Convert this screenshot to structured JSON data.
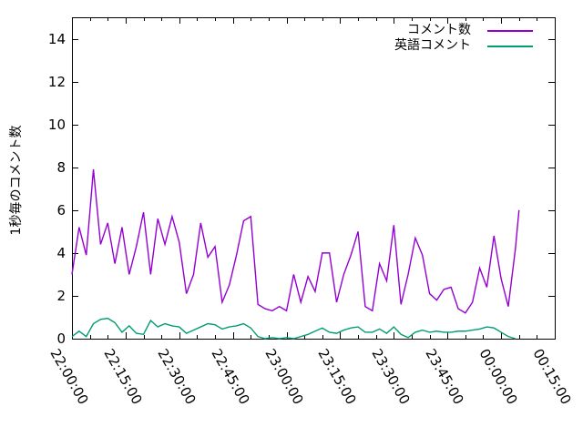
{
  "chart_data": {
    "type": "line",
    "title": "",
    "xlabel": "",
    "ylabel": "1秒毎のコメント数",
    "ylim": [
      0,
      15
    ],
    "x_range_minutes": [
      0,
      135
    ],
    "x_major_step_minutes": 15,
    "x_minor_step_minutes": 5,
    "grid": false,
    "legend_position": "top-right-inside",
    "axis_color": "#000000",
    "background_color": "#ffffff",
    "y_ticks": [
      {
        "value": 0,
        "label": "0"
      },
      {
        "value": 2,
        "label": "2"
      },
      {
        "value": 4,
        "label": "4"
      },
      {
        "value": 6,
        "label": "6"
      },
      {
        "value": 8,
        "label": "8"
      },
      {
        "value": 10,
        "label": "10"
      },
      {
        "value": 12,
        "label": "12"
      },
      {
        "value": 14,
        "label": "14"
      }
    ],
    "x_ticks": [
      {
        "minutes": 0,
        "label": "22:00:00"
      },
      {
        "minutes": 15,
        "label": "22:15:00"
      },
      {
        "minutes": 30,
        "label": "22:30:00"
      },
      {
        "minutes": 45,
        "label": "22:45:00"
      },
      {
        "minutes": 60,
        "label": "23:00:00"
      },
      {
        "minutes": 75,
        "label": "23:15:00"
      },
      {
        "minutes": 90,
        "label": "23:30:00"
      },
      {
        "minutes": 105,
        "label": "23:45:00"
      },
      {
        "minutes": 120,
        "label": "00:00:00"
      },
      {
        "minutes": 135,
        "label": "00:15:00"
      }
    ],
    "series": [
      {
        "name": "コメント数",
        "color": "#9400d3",
        "x_minutes": [
          0,
          2,
          4,
          6,
          8,
          10,
          12,
          14,
          16,
          18,
          20,
          22,
          24,
          26,
          28,
          30,
          32,
          34,
          36,
          38,
          40,
          42,
          44,
          46,
          48,
          50,
          52,
          54,
          56,
          58,
          60,
          62,
          64,
          66,
          68,
          70,
          72,
          74,
          76,
          78,
          80,
          82,
          84,
          86,
          88,
          90,
          92,
          94,
          96,
          98,
          100,
          102,
          104,
          106,
          108,
          110,
          112,
          114,
          116,
          118,
          120,
          122,
          124,
          125
        ],
        "values": [
          3.0,
          5.2,
          3.9,
          7.9,
          4.4,
          5.4,
          3.5,
          5.2,
          3.0,
          4.3,
          5.9,
          3.0,
          5.6,
          4.4,
          5.7,
          4.5,
          2.1,
          3.0,
          5.4,
          3.8,
          4.3,
          1.7,
          2.5,
          3.9,
          5.5,
          5.7,
          1.6,
          1.4,
          1.3,
          1.5,
          1.3,
          3.0,
          1.7,
          2.9,
          2.2,
          4.0,
          4.0,
          1.7,
          3.0,
          3.9,
          5.0,
          1.5,
          1.3,
          3.5,
          2.7,
          5.3,
          1.6,
          3.0,
          4.7,
          3.9,
          2.1,
          1.8,
          2.3,
          2.4,
          1.4,
          1.2,
          1.7,
          3.3,
          2.4,
          4.8,
          2.8,
          1.5,
          4.2,
          6.0
        ]
      },
      {
        "name": "英語コメント",
        "color": "#009e73",
        "x_minutes": [
          0,
          2,
          4,
          6,
          8,
          10,
          12,
          14,
          16,
          18,
          20,
          22,
          24,
          26,
          28,
          30,
          32,
          34,
          36,
          38,
          40,
          42,
          44,
          46,
          48,
          50,
          52,
          54,
          56,
          58,
          60,
          62,
          64,
          66,
          68,
          70,
          72,
          74,
          76,
          78,
          80,
          82,
          84,
          86,
          88,
          90,
          92,
          94,
          96,
          98,
          100,
          102,
          104,
          106,
          108,
          110,
          112,
          114,
          116,
          118,
          120,
          122,
          124
        ],
        "values": [
          0.1,
          0.35,
          0.1,
          0.7,
          0.9,
          0.95,
          0.75,
          0.3,
          0.6,
          0.25,
          0.2,
          0.85,
          0.55,
          0.7,
          0.6,
          0.55,
          0.25,
          0.4,
          0.55,
          0.7,
          0.65,
          0.45,
          0.55,
          0.6,
          0.7,
          0.5,
          0.1,
          0.0,
          0.05,
          0.0,
          0.05,
          0.0,
          0.1,
          0.2,
          0.35,
          0.5,
          0.3,
          0.25,
          0.4,
          0.5,
          0.55,
          0.3,
          0.3,
          0.45,
          0.25,
          0.55,
          0.2,
          0.05,
          0.3,
          0.4,
          0.3,
          0.35,
          0.3,
          0.3,
          0.35,
          0.35,
          0.4,
          0.45,
          0.55,
          0.5,
          0.3,
          0.1,
          0.0
        ]
      }
    ]
  }
}
